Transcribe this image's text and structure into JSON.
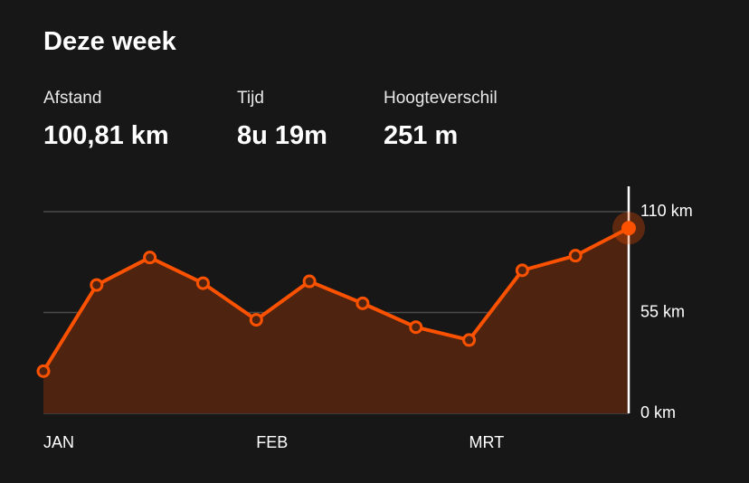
{
  "header": {
    "title": "Deze week"
  },
  "stats": [
    {
      "label": "Afstand",
      "value": "100,81 km"
    },
    {
      "label": "Tijd",
      "value": "8u 19m"
    },
    {
      "label": "Hoogteverschil",
      "value": "251 m"
    }
  ],
  "chart_data": {
    "type": "area",
    "categories": [
      "JAN",
      null,
      null,
      null,
      "FEB",
      null,
      null,
      null,
      "MRT",
      null,
      null,
      null
    ],
    "values": [
      23,
      70,
      85,
      71,
      51,
      72,
      60,
      47,
      40,
      78,
      86,
      101
    ],
    "color": "#fc5200",
    "fill": "#4e2310",
    "ylim": [
      0,
      110
    ],
    "yticks": [
      {
        "value": 0,
        "label": "0 km"
      },
      {
        "value": 55,
        "label": "55 km"
      },
      {
        "value": 110,
        "label": "110 km"
      }
    ],
    "grid": true
  }
}
